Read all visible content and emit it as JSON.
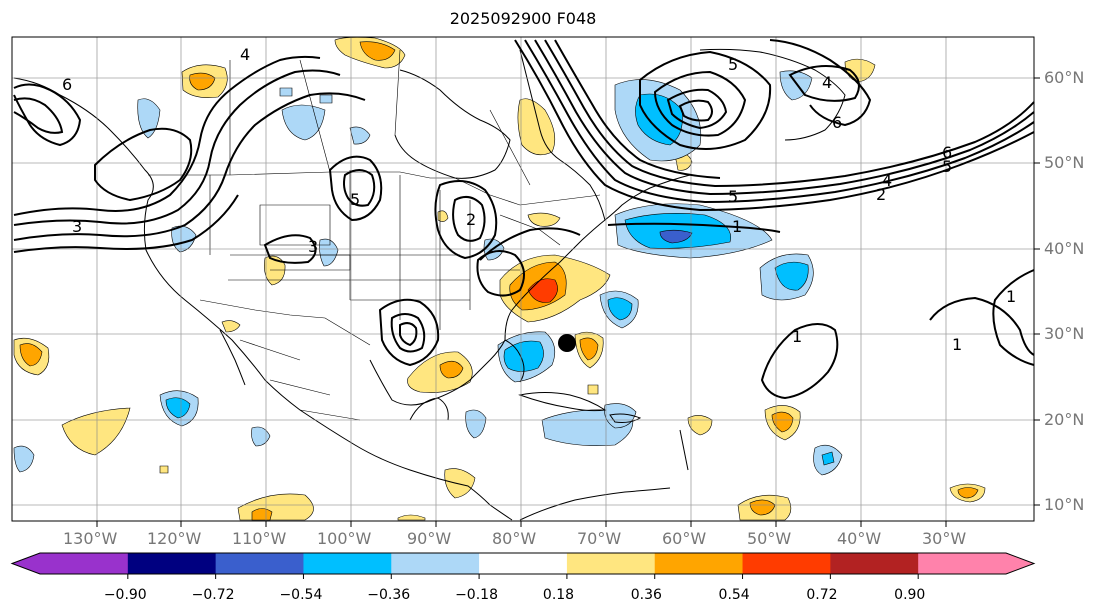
{
  "title": "2025092900 F048",
  "lat_labels": [
    "60°N",
    "50°N",
    "40°N",
    "30°N",
    "20°N",
    "10°N"
  ],
  "lon_labels": [
    "130°W",
    "120°W",
    "110°W",
    "100°W",
    "90°W",
    "80°W",
    "70°W",
    "60°W",
    "50°W",
    "40°W",
    "30°W"
  ],
  "colorbar": {
    "colors": [
      "#9932cc",
      "#000080",
      "#3a5fcd",
      "#00bfff",
      "#add8f7",
      "#ffffff",
      "#ffe680",
      "#ffa500",
      "#ff3c00",
      "#b22222",
      "#ff82ab"
    ],
    "extend_low_color": "#9932cc",
    "extend_high_color": "#ff82ab",
    "tick_labels": [
      "−0.90",
      "−0.72",
      "−0.54",
      "−0.36",
      "−0.18",
      "0.18",
      "0.36",
      "0.54",
      "0.72",
      "0.90"
    ]
  },
  "contour_labels": [
    "6",
    "3",
    "4",
    "5",
    "3",
    "2",
    "5",
    "6",
    "4",
    "6",
    "5",
    "4",
    "2",
    "5",
    "1",
    "1",
    "1",
    "1"
  ],
  "marker": {
    "color": "#000000"
  }
}
